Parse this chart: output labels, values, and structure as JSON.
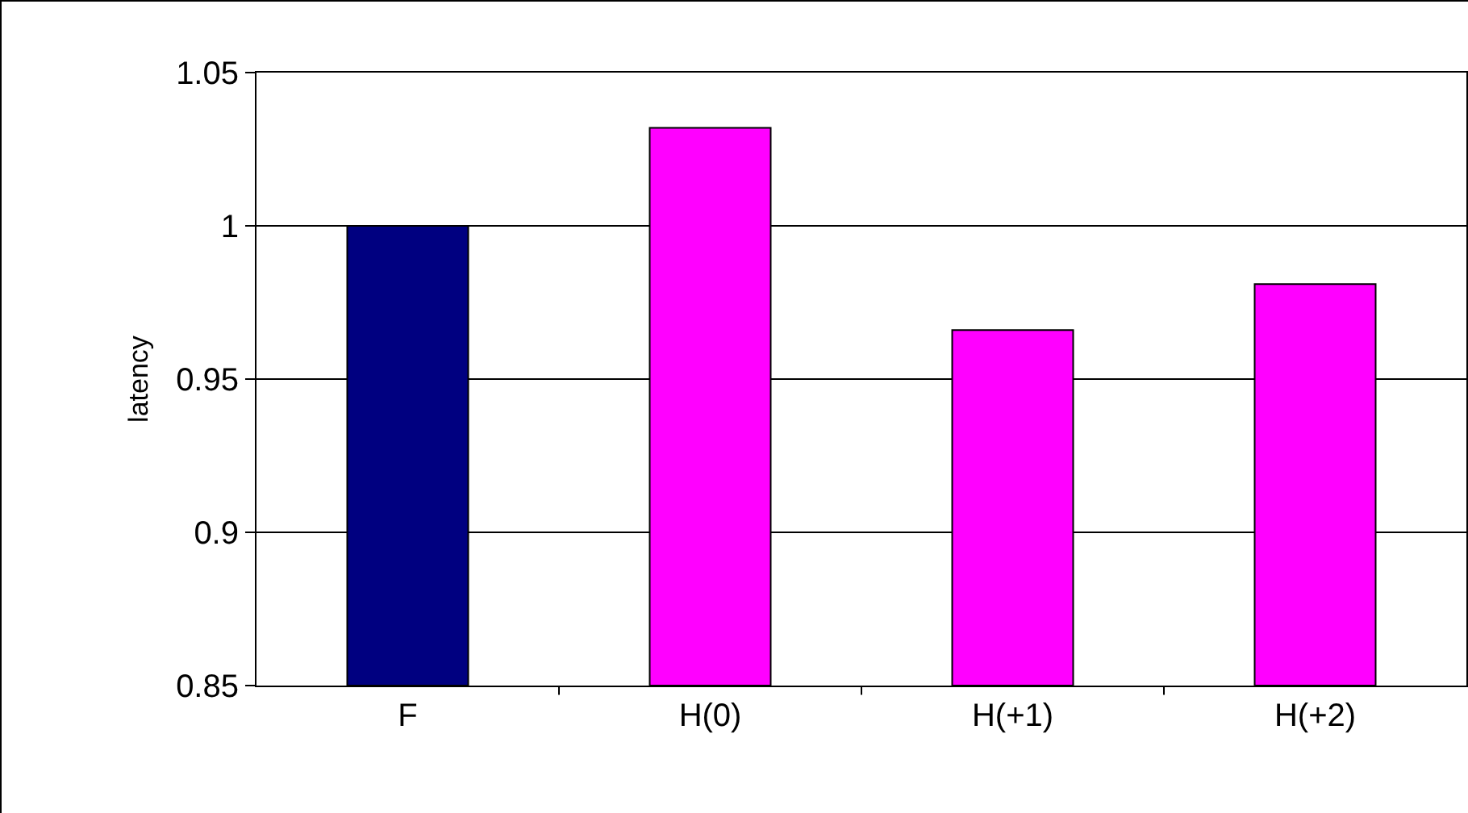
{
  "chart_data": {
    "type": "bar",
    "ylabel": "latency",
    "categories": [
      "F",
      "H(0)",
      "H(+1)",
      "H(+2)"
    ],
    "values": [
      1.0,
      1.032,
      0.966,
      0.981
    ],
    "colors": [
      "#000080",
      "#ff00ff",
      "#ff00ff",
      "#ff00ff"
    ],
    "ylim": [
      0.85,
      1.05
    ],
    "yticks": [
      0.85,
      0.9,
      0.95,
      1,
      1.05
    ],
    "grid": "y"
  }
}
